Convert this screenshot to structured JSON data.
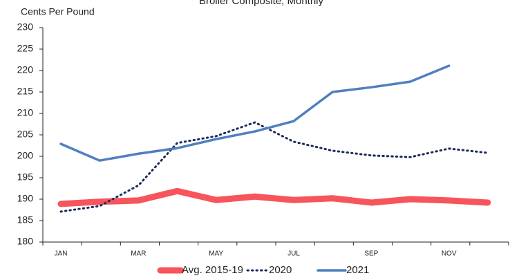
{
  "chart_data": {
    "type": "line",
    "title": "Broiler Composite, Monthly",
    "y_label": "Cents Per Pound",
    "categories": [
      "JAN",
      null,
      "MAR",
      null,
      "MAY",
      null,
      "JUL",
      null,
      "SEP",
      null,
      "NOV",
      null
    ],
    "series": [
      {
        "name": "Avg. 2015-19",
        "color": "#f7545c",
        "style": "solid",
        "width": 9,
        "values": [
          188.9,
          189.4,
          189.7,
          191.9,
          189.8,
          190.6,
          189.8,
          190.2,
          189.2,
          190.0,
          189.7,
          189.2
        ]
      },
      {
        "name": "2020",
        "color": "#1c2a5a",
        "style": "dotted",
        "width": 3,
        "values": [
          187.1,
          188.4,
          193.2,
          203.1,
          204.7,
          207.9,
          203.4,
          201.3,
          200.2,
          199.8,
          201.8,
          200.8
        ]
      },
      {
        "name": "2021",
        "color": "#4f7fbf",
        "style": "solid",
        "width": 3.5,
        "values": [
          202.9,
          199.0,
          200.6,
          201.9,
          204.0,
          205.8,
          208.2,
          215.0,
          216.1,
          217.4,
          221.1,
          null
        ]
      }
    ],
    "ylim": [
      180,
      230
    ],
    "yticks": [
      180,
      185,
      190,
      195,
      200,
      205,
      210,
      215,
      220,
      225,
      230
    ],
    "grid": false,
    "legend": "bottom"
  }
}
